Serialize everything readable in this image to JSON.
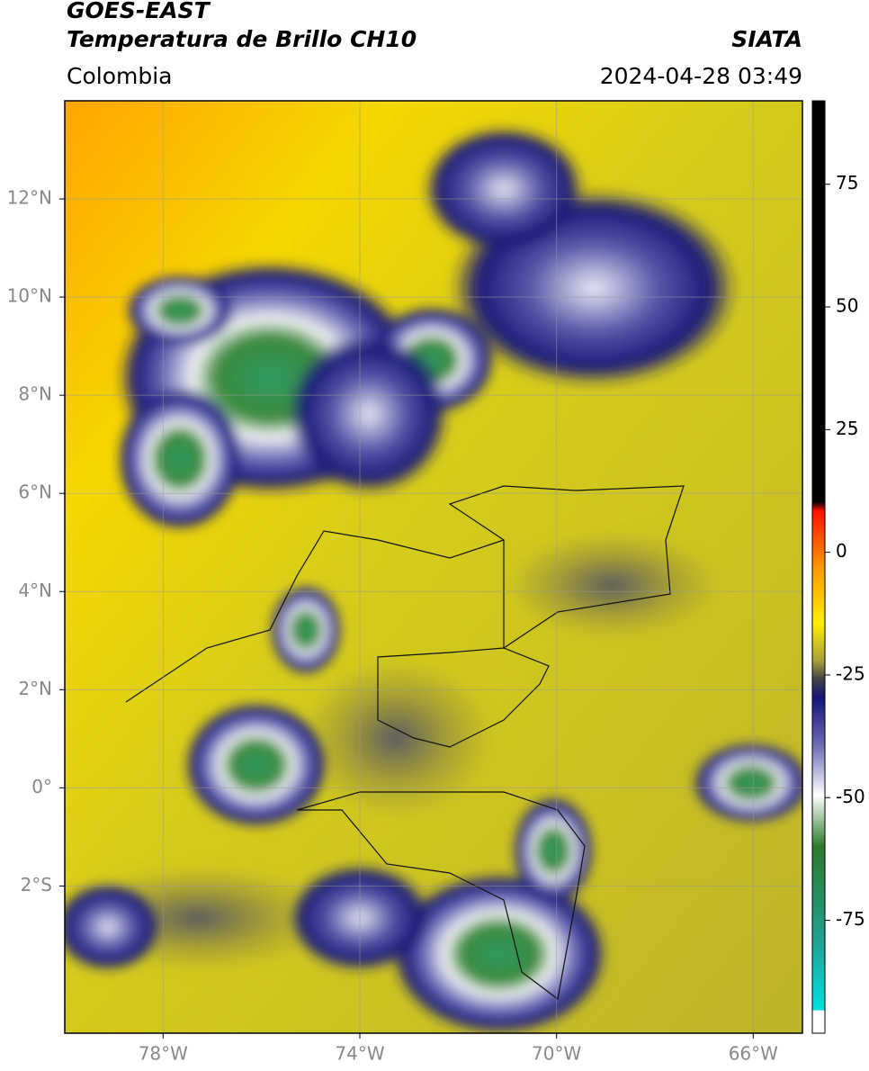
{
  "header": {
    "title": "GOES-EAST",
    "subtitle": "Temperatura de Brillo CH10",
    "source": "SIATA",
    "region": "Colombia",
    "timestamp": "2024-04-28 03:49"
  },
  "map": {
    "xlim": [
      -80,
      -65
    ],
    "ylim": [
      -5,
      14
    ],
    "xticks": [
      {
        "value": -78,
        "label": "78°W"
      },
      {
        "value": -74,
        "label": "74°W"
      },
      {
        "value": -70,
        "label": "70°W"
      },
      {
        "value": -66,
        "label": "66°W"
      }
    ],
    "yticks": [
      {
        "value": 12,
        "label": "12°N"
      },
      {
        "value": 10,
        "label": "10°N"
      },
      {
        "value": 8,
        "label": "8°N"
      },
      {
        "value": 6,
        "label": "6°N"
      },
      {
        "value": 4,
        "label": "4°N"
      },
      {
        "value": 2,
        "label": "2°N"
      },
      {
        "value": 0,
        "label": "0°"
      },
      {
        "value": -2,
        "label": "2°S"
      }
    ],
    "grid": true
  },
  "colorbar": {
    "lim": [
      -98,
      92
    ],
    "ticks": [
      75,
      50,
      25,
      0,
      -25,
      -50,
      -75
    ]
  }
}
